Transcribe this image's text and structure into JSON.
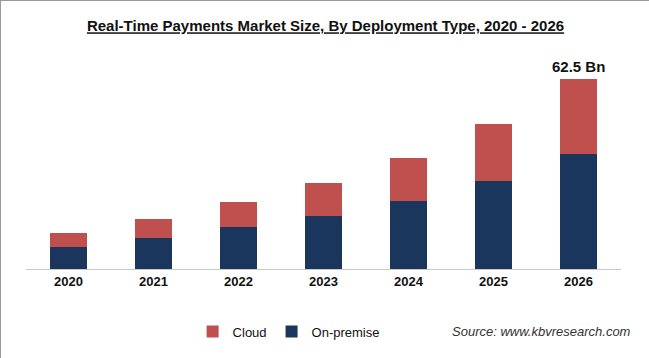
{
  "chart_data": {
    "type": "bar",
    "title": "Real-Time Payments Market Size, By Deployment Type, 2020 - 2026",
    "categories": [
      "2020",
      "2021",
      "2022",
      "2023",
      "2024",
      "2025",
      "2026"
    ],
    "series": [
      {
        "name": "On-premise",
        "color": "#1b365d",
        "values": [
          7.2,
          10.2,
          13.8,
          17.4,
          22.4,
          29.0,
          37.8
        ]
      },
      {
        "name": "Cloud",
        "color": "#c0504d",
        "values": [
          4.6,
          6.3,
          8.2,
          10.9,
          14.1,
          18.8,
          24.7
        ]
      }
    ],
    "stacked": true,
    "ylim": [
      0,
      62.5
    ],
    "yticks": [],
    "grid": false,
    "tick_labels": "x",
    "legend": "bottom",
    "annotations": [
      {
        "text": "62.5 Bn",
        "x": "2026",
        "y": 62.5
      }
    ],
    "source": "Source: www.kbvresearch.com"
  }
}
